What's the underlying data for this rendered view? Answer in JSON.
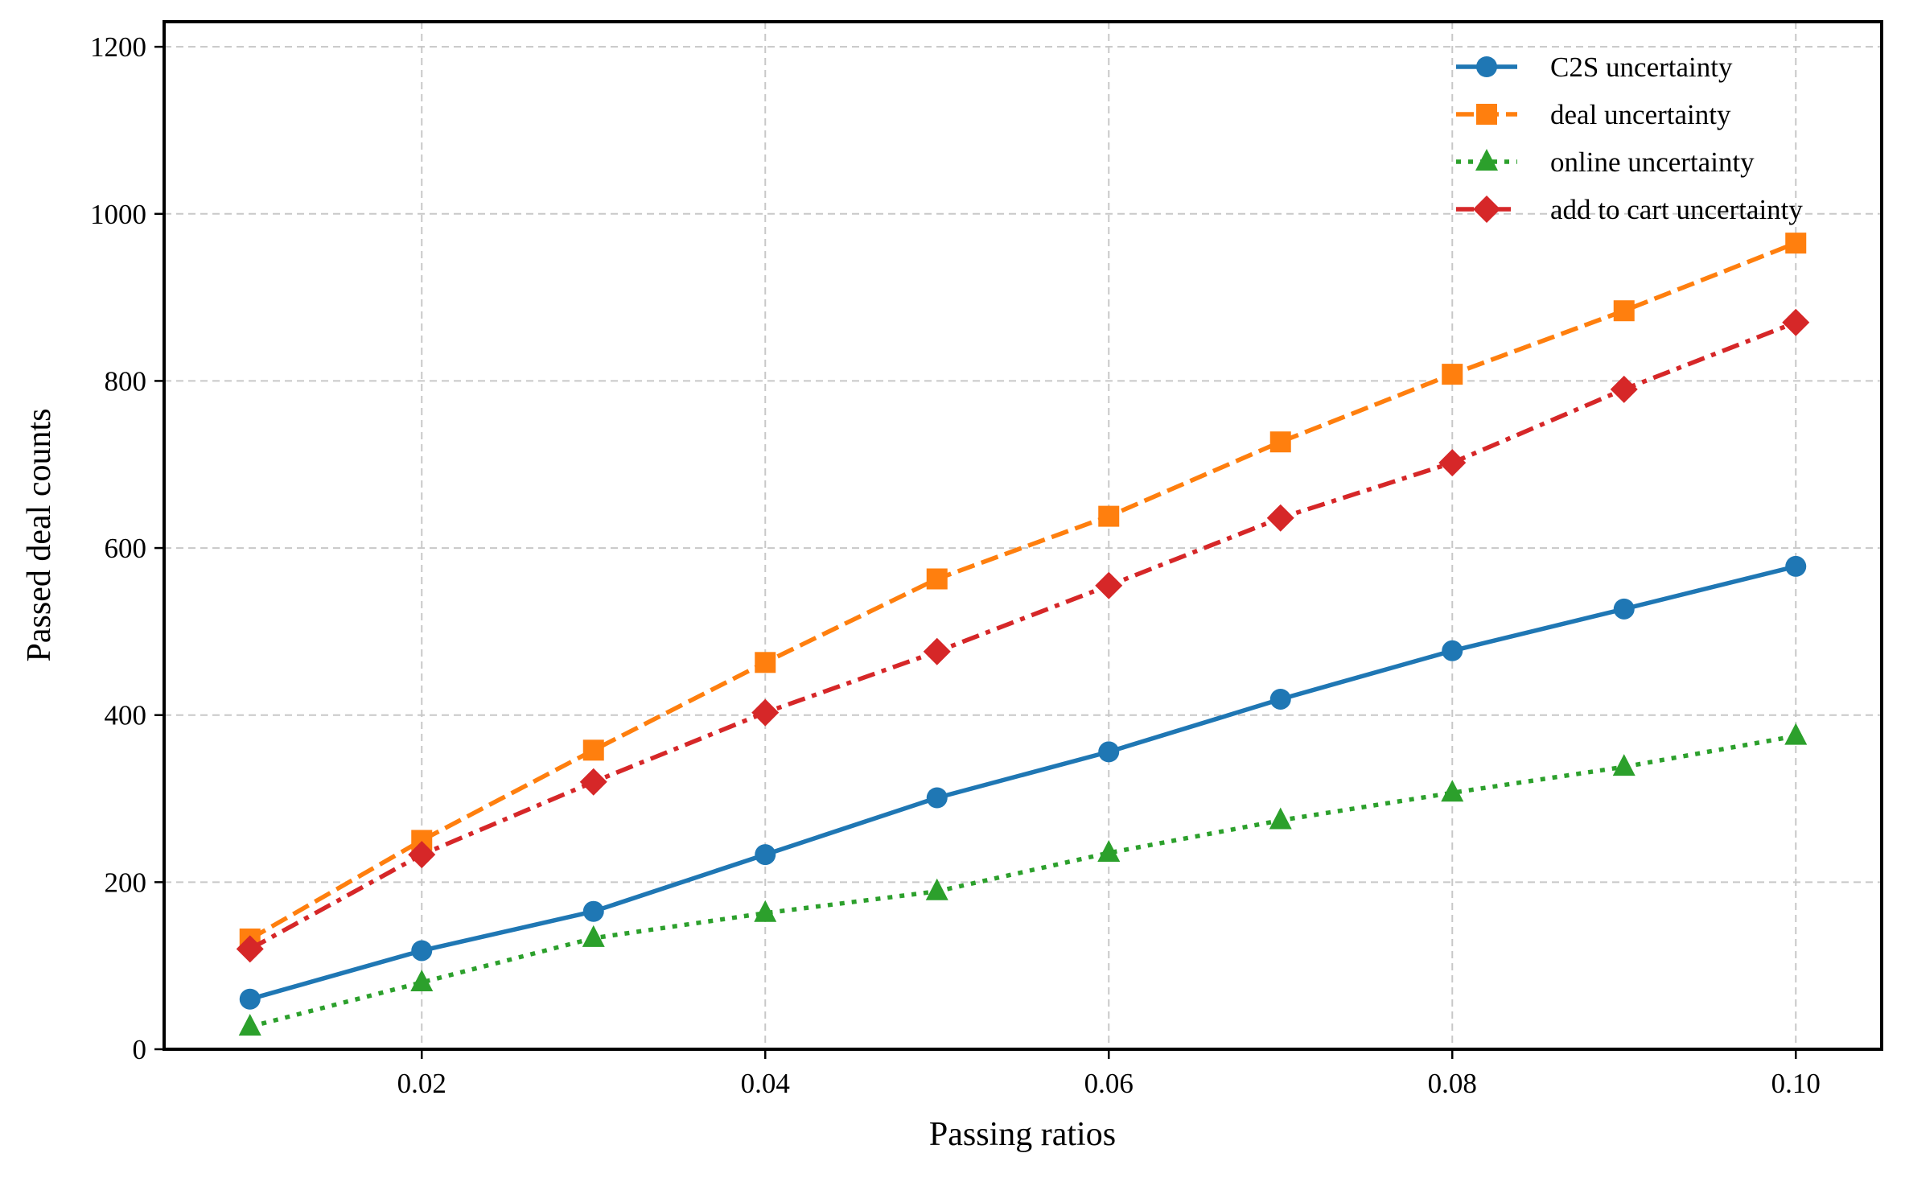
{
  "chart_data": {
    "type": "line",
    "title": "",
    "xlabel": "Passing ratios",
    "ylabel": "Passed deal counts",
    "xlim": [
      0.005,
      0.105
    ],
    "ylim": [
      0,
      1230
    ],
    "xticks": [
      0.02,
      0.04,
      0.06,
      0.08,
      0.1
    ],
    "xtick_labels": [
      "0.02",
      "0.04",
      "0.06",
      "0.08",
      "0.10"
    ],
    "yticks": [
      0,
      200,
      400,
      600,
      800,
      1000,
      1200
    ],
    "ytick_labels": [
      "0",
      "200",
      "400",
      "600",
      "800",
      "1000",
      "1200"
    ],
    "grid": true,
    "legend_position": "top-right",
    "x": [
      0.01,
      0.02,
      0.03,
      0.04,
      0.05,
      0.06,
      0.07,
      0.08,
      0.09,
      0.1
    ],
    "series": [
      {
        "name": "C2S uncertainty",
        "color": "#1f77b4",
        "marker": "circle",
        "linestyle": "solid",
        "values": [
          60,
          118,
          165,
          233,
          301,
          356,
          419,
          477,
          527,
          578
        ]
      },
      {
        "name": "deal uncertainty",
        "color": "#ff7f0e",
        "marker": "square",
        "linestyle": "dashed",
        "values": [
          132,
          250,
          358,
          463,
          563,
          638,
          727,
          808,
          884,
          965
        ]
      },
      {
        "name": "online uncertainty",
        "color": "#2ca02c",
        "marker": "triangle",
        "linestyle": "dotted",
        "values": [
          27,
          80,
          133,
          163,
          189,
          235,
          274,
          307,
          338,
          375
        ]
      },
      {
        "name": "add to cart uncertainty",
        "color": "#d62728",
        "marker": "diamond",
        "linestyle": "dashdot",
        "values": [
          120,
          233,
          320,
          403,
          476,
          555,
          636,
          702,
          790,
          870
        ]
      }
    ]
  }
}
